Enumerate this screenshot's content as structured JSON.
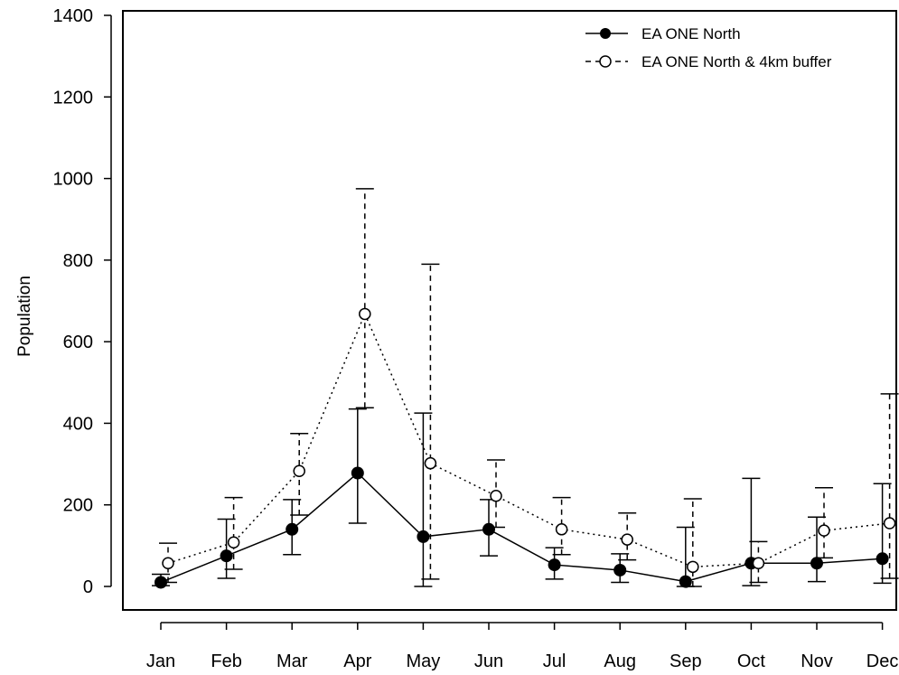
{
  "chart_data": {
    "type": "line",
    "ylabel": "Population",
    "ylim": [
      0,
      1400
    ],
    "yticks": [
      0,
      200,
      400,
      600,
      800,
      1000,
      1200,
      1400
    ],
    "categories": [
      "Jan",
      "Feb",
      "Mar",
      "Apr",
      "May",
      "Jun",
      "Jul",
      "Aug",
      "Sep",
      "Oct",
      "Nov",
      "Dec"
    ],
    "grid": false,
    "legend_position": "top-right",
    "error_bars": true,
    "series": [
      {
        "name": "EA ONE North",
        "marker": "filled-circle",
        "line_style": "solid",
        "color": "#000000",
        "values": [
          10,
          75,
          140,
          278,
          122,
          140,
          53,
          40,
          12,
          57,
          57,
          68
        ],
        "lower": [
          2,
          20,
          78,
          155,
          0,
          75,
          18,
          10,
          0,
          2,
          12,
          8
        ],
        "upper": [
          30,
          165,
          213,
          435,
          425,
          213,
          95,
          80,
          145,
          265,
          170,
          252
        ]
      },
      {
        "name": "EA ONE North & 4km buffer",
        "marker": "open-circle",
        "line_style": "dotted",
        "errorbar_style": "dashed",
        "color": "#000000",
        "values": [
          57,
          108,
          283,
          668,
          302,
          222,
          140,
          115,
          48,
          57,
          137,
          155
        ],
        "lower": [
          10,
          42,
          175,
          438,
          18,
          145,
          78,
          65,
          0,
          10,
          70,
          20
        ],
        "upper": [
          106,
          218,
          375,
          975,
          790,
          310,
          218,
          180,
          215,
          110,
          242,
          472
        ]
      }
    ]
  }
}
